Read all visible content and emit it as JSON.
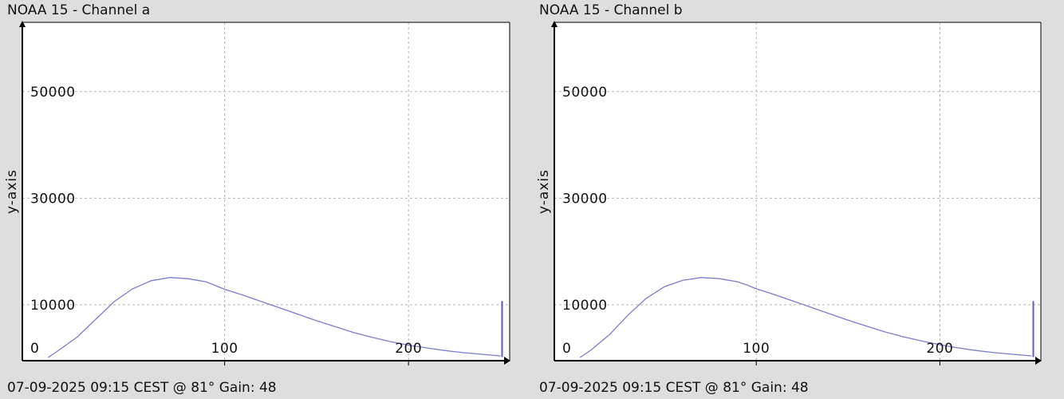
{
  "chart_data": [
    {
      "type": "line",
      "title": "NOAA 15 - Channel a",
      "footer": "07-09-2025 09:15 CEST @ 81° Gain: 48",
      "ylabel": "y-axis",
      "xlim": [
        -10,
        255
      ],
      "ylim": [
        -500,
        63000
      ],
      "x_ticks": [
        0,
        100,
        200
      ],
      "y_ticks": [
        10000,
        30000,
        50000
      ],
      "grid": true,
      "series": [
        {
          "color": "#7c7cd0",
          "x": [
            4,
            10,
            20,
            30,
            40,
            50,
            60,
            70,
            80,
            90,
            95,
            100,
            110,
            120,
            130,
            140,
            150,
            160,
            170,
            180,
            190,
            200,
            210,
            220,
            230,
            240,
            250
          ],
          "y": [
            100,
            1500,
            4000,
            7300,
            10600,
            13000,
            14500,
            15100,
            14900,
            14300,
            13600,
            12900,
            11800,
            10600,
            9400,
            8200,
            7000,
            5900,
            4800,
            3900,
            3100,
            2400,
            1900,
            1400,
            1000,
            700,
            400
          ]
        }
      ],
      "edge_spike": {
        "x": 250,
        "y_from": 200,
        "y_to": 10700
      }
    },
    {
      "type": "line",
      "title": "NOAA 15 - Channel b",
      "footer": "07-09-2025 09:15 CEST @ 81° Gain: 48",
      "ylabel": "y-axis",
      "xlim": [
        -10,
        255
      ],
      "ylim": [
        -500,
        63000
      ],
      "x_ticks": [
        0,
        100,
        200
      ],
      "y_ticks": [
        10000,
        30000,
        50000
      ],
      "grid": true,
      "series": [
        {
          "color": "#7c7cd0",
          "x": [
            4,
            10,
            20,
            30,
            40,
            50,
            60,
            70,
            80,
            90,
            95,
            100,
            110,
            120,
            130,
            140,
            150,
            160,
            170,
            180,
            190,
            200,
            210,
            220,
            230,
            240,
            250
          ],
          "y": [
            100,
            1500,
            4400,
            8000,
            11200,
            13400,
            14600,
            15100,
            14900,
            14300,
            13700,
            13000,
            11900,
            10700,
            9500,
            8300,
            7100,
            6000,
            4900,
            4000,
            3200,
            2500,
            1900,
            1400,
            1000,
            700,
            400
          ]
        }
      ],
      "edge_spike": {
        "x": 250,
        "y_from": 200,
        "y_to": 10700
      }
    }
  ]
}
